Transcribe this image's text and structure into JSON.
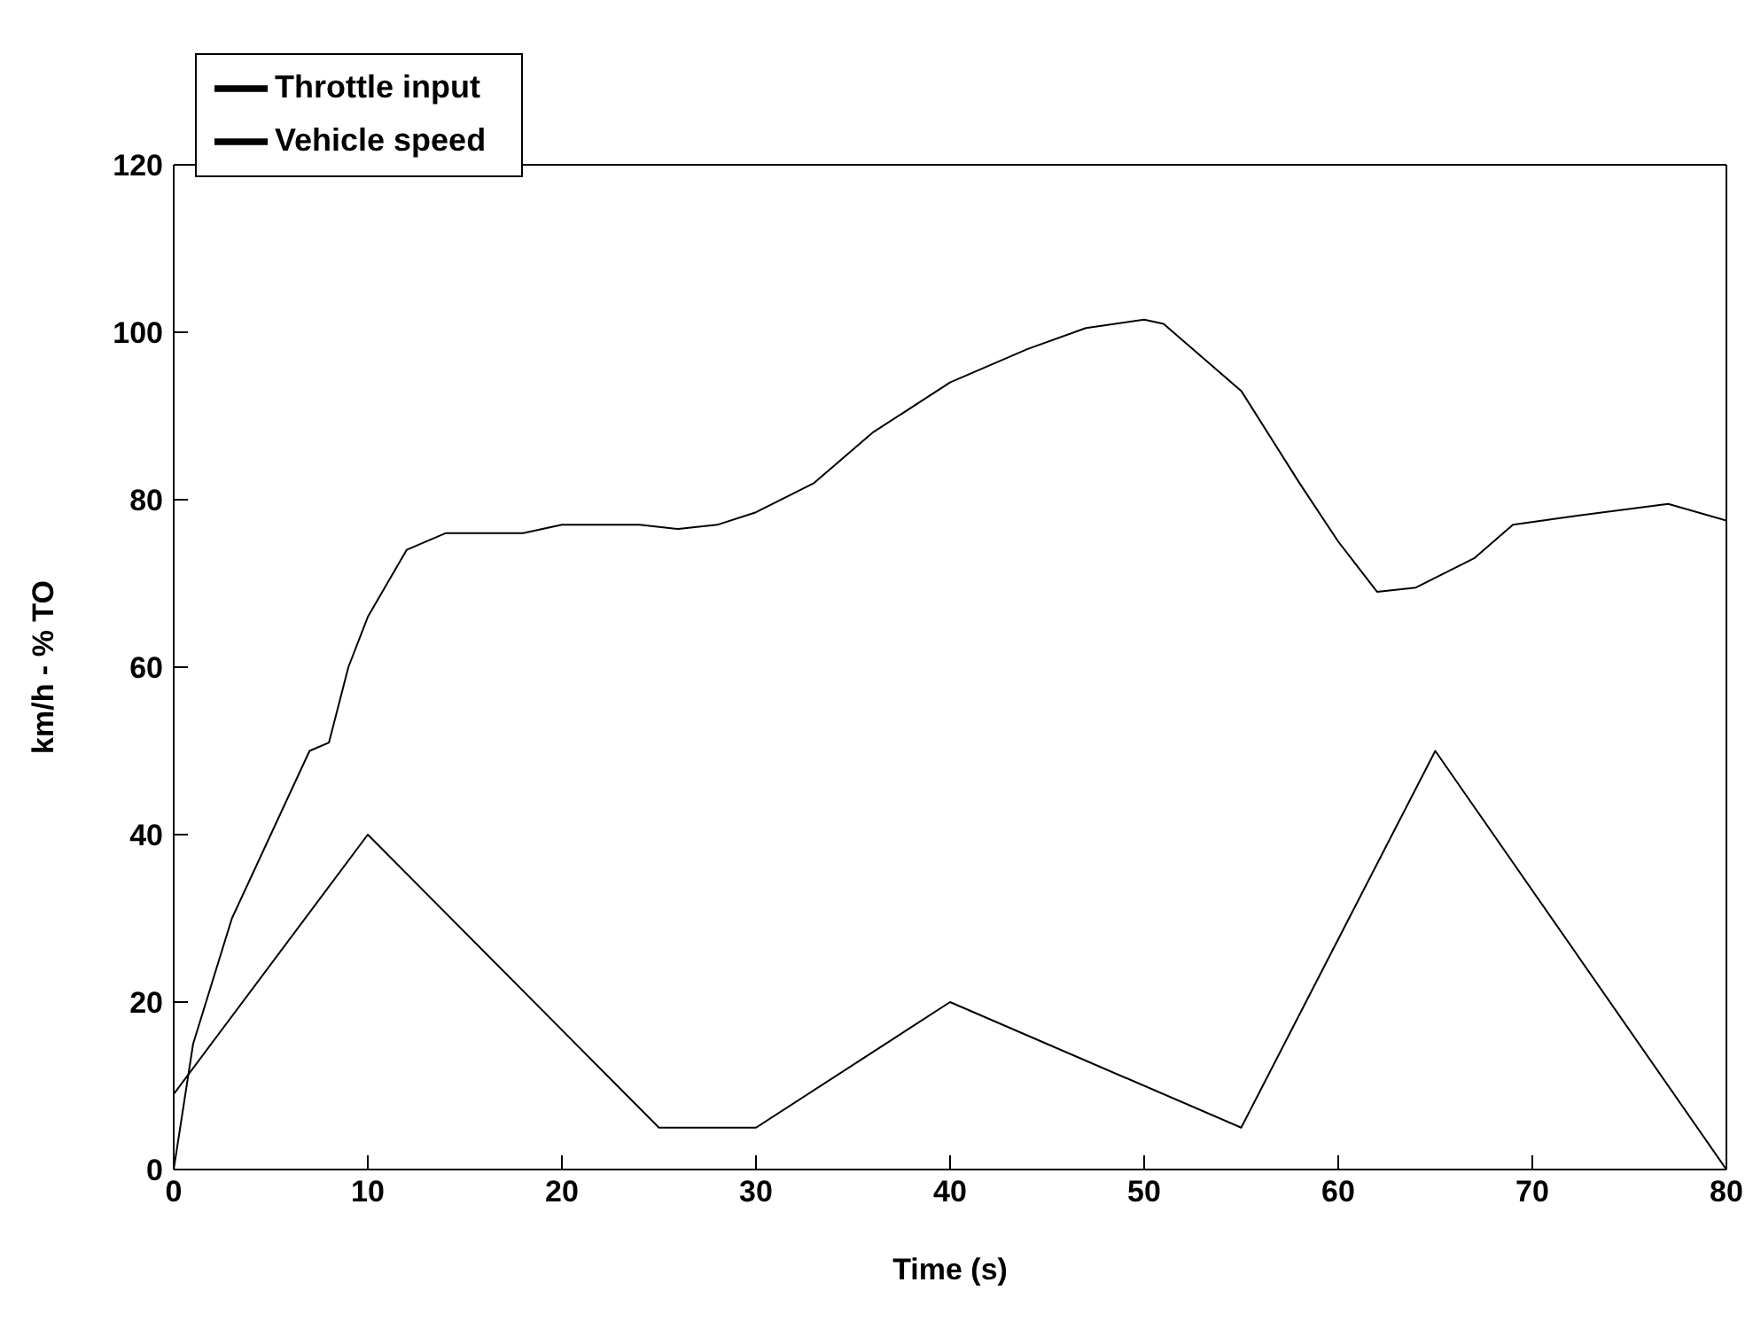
{
  "chart_data": {
    "type": "line",
    "xlabel": "Time (s)",
    "ylabel": "km/h - % TO",
    "xlim": [
      0,
      80
    ],
    "xticks": [
      0,
      10,
      20,
      30,
      40,
      50,
      60,
      70,
      80
    ],
    "ylim": [
      0,
      120
    ],
    "yticks": [
      0,
      20,
      40,
      60,
      80,
      100,
      120
    ],
    "grid": false,
    "legend": "top left",
    "marker": "none",
    "line_style": "solid",
    "series": [
      {
        "name": "Throttle input",
        "color": "#000000",
        "x": [
          0,
          10,
          25,
          30,
          40,
          55,
          65,
          80
        ],
        "values": [
          9,
          40,
          5,
          5,
          20,
          5,
          50,
          0
        ]
      },
      {
        "name": "Vehicle speed",
        "color": "#000000",
        "x": [
          0,
          1,
          3,
          5,
          7,
          8,
          9,
          10,
          12,
          14,
          18,
          20,
          24,
          26,
          28,
          30,
          33,
          36,
          40,
          44,
          47,
          50,
          51,
          55,
          58,
          60,
          62,
          64,
          67,
          69,
          72,
          77,
          80
        ],
        "values": [
          0,
          15,
          30,
          40,
          50,
          51,
          60,
          66,
          74,
          76,
          76,
          77,
          77,
          76.5,
          77,
          78.5,
          82,
          88,
          94,
          98,
          100.5,
          101.5,
          101,
          93,
          82,
          75,
          69,
          69.5,
          73,
          77,
          78,
          79.5,
          77.5
        ]
      }
    ]
  }
}
